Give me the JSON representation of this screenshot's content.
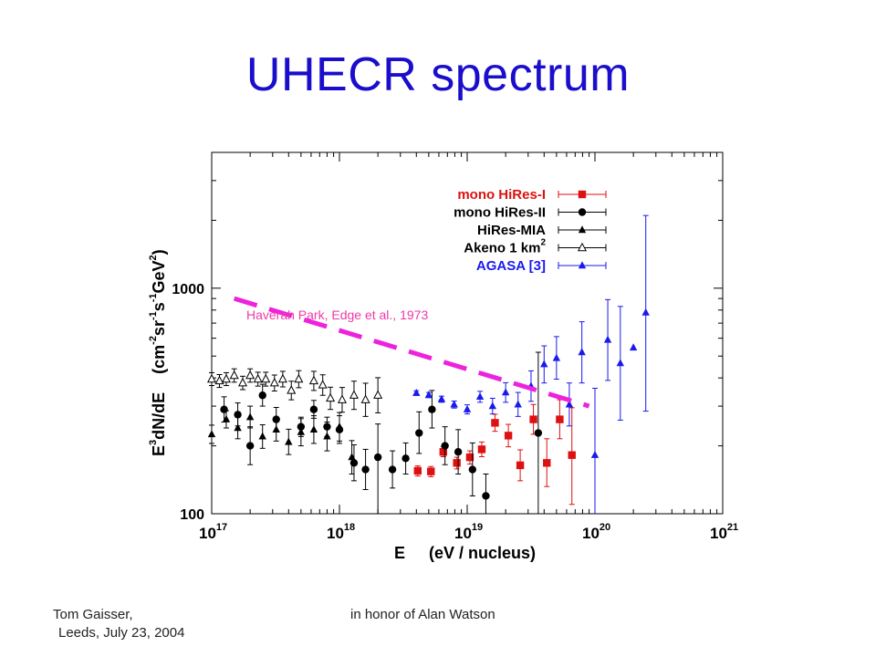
{
  "slide": {
    "title": "UHECR spectrum",
    "footer_left_line1": "Tom Gaisser,",
    "footer_left_line2": "Leeds, July 23, 2004",
    "footer_center": "in honor of Alan Watson"
  },
  "chart_data": {
    "type": "scatter",
    "xscale": "log",
    "yscale": "log",
    "xlim": [
      1e+17,
      1e+21
    ],
    "ylim": [
      100,
      4000
    ],
    "x_ticks": [
      {
        "base": "10",
        "exp": "17"
      },
      {
        "base": "10",
        "exp": "18"
      },
      {
        "base": "10",
        "exp": "19"
      },
      {
        "base": "10",
        "exp": "20"
      },
      {
        "base": "10",
        "exp": "21"
      }
    ],
    "y_ticks": [
      "100",
      "1000"
    ],
    "xlabel": {
      "main": "E",
      "unit": "(eV / nucleus)"
    },
    "ylabel": {
      "main_pre": "E",
      "main_sup": "3",
      "main_post": "dN/dE",
      "unit_a": "(cm",
      "unit_a_sup": "-2",
      "unit_b": "sr",
      "unit_b_sup": "-1",
      "unit_c": "s",
      "unit_c_sup": "-1",
      "unit_d": "GeV",
      "unit_d_sup": "2",
      "unit_e": ")"
    },
    "annotation": {
      "text": "Haverah Park, Edge et al., 1973",
      "color": "#ee3aa8"
    },
    "reference_line": {
      "x": [
        1.5e+17,
        9e+19
      ],
      "y": [
        900,
        300
      ],
      "color": "#ee22dd"
    },
    "legend_position": "top-right",
    "legend": [
      {
        "label": "mono HiRes-I",
        "color": "#dd1111",
        "marker": "square"
      },
      {
        "label": "mono HiRes-II",
        "color": "#000000",
        "marker": "circle"
      },
      {
        "label": "HiRes-MIA",
        "color": "#000000",
        "marker": "triangle"
      },
      {
        "label_pre": "Akeno 1 km",
        "label_sup": "2",
        "color": "#000000",
        "marker": "open-triangle"
      },
      {
        "label": "AGASA [3]",
        "color": "#1a1aee",
        "marker": "triangle"
      }
    ],
    "series": [
      {
        "name": "mono HiRes-I",
        "color": "#dd1111",
        "marker": "square",
        "points": [
          {
            "x": 4.1e+18,
            "y": 155,
            "lo": 147,
            "hi": 163
          },
          {
            "x": 5.2e+18,
            "y": 154,
            "lo": 146,
            "hi": 162
          },
          {
            "x": 6.5e+18,
            "y": 188,
            "lo": 179,
            "hi": 198
          },
          {
            "x": 8.3e+18,
            "y": 168,
            "lo": 158,
            "hi": 178
          },
          {
            "x": 1.05e+19,
            "y": 178,
            "lo": 166,
            "hi": 190
          },
          {
            "x": 1.3e+19,
            "y": 193,
            "lo": 179,
            "hi": 208
          },
          {
            "x": 1.65e+19,
            "y": 253,
            "lo": 232,
            "hi": 276
          },
          {
            "x": 2.1e+19,
            "y": 222,
            "lo": 198,
            "hi": 249
          },
          {
            "x": 2.6e+19,
            "y": 164,
            "lo": 140,
            "hi": 192
          },
          {
            "x": 3.3e+19,
            "y": 262,
            "lo": 225,
            "hi": 305
          },
          {
            "x": 4.2e+19,
            "y": 168,
            "lo": 132,
            "hi": 215
          },
          {
            "x": 5.3e+19,
            "y": 262,
            "lo": 215,
            "hi": 320
          },
          {
            "x": 6.6e+19,
            "y": 182,
            "lo": 110,
            "hi": 295
          }
        ]
      },
      {
        "name": "mono HiRes-II",
        "color": "#000000",
        "marker": "circle",
        "points": [
          {
            "x": 1.25e+17,
            "y": 290,
            "lo": 255,
            "hi": 330
          },
          {
            "x": 1.6e+17,
            "y": 275,
            "lo": 245,
            "hi": 310
          },
          {
            "x": 2e+17,
            "y": 200,
            "lo": 165,
            "hi": 243
          },
          {
            "x": 2.5e+17,
            "y": 335,
            "lo": 300,
            "hi": 375
          },
          {
            "x": 3.2e+17,
            "y": 262,
            "lo": 232,
            "hi": 296
          },
          {
            "x": 5e+17,
            "y": 243,
            "lo": 220,
            "hi": 268
          },
          {
            "x": 6.3e+17,
            "y": 290,
            "lo": 265,
            "hi": 318
          },
          {
            "x": 8e+17,
            "y": 243,
            "lo": 220,
            "hi": 268
          },
          {
            "x": 1e+18,
            "y": 236,
            "lo": 205,
            "hi": 272
          },
          {
            "x": 1.3e+18,
            "y": 168,
            "lo": 140,
            "hi": 202
          },
          {
            "x": 1.6e+18,
            "y": 157,
            "lo": 128,
            "hi": 193
          },
          {
            "x": 2e+18,
            "y": 178,
            "lo": 100,
            "hi": 250
          },
          {
            "x": 2.6e+18,
            "y": 157,
            "lo": 130,
            "hi": 190
          },
          {
            "x": 3.3e+18,
            "y": 176,
            "lo": 150,
            "hi": 206
          },
          {
            "x": 4.2e+18,
            "y": 228,
            "lo": 185,
            "hi": 283
          },
          {
            "x": 5.3e+18,
            "y": 290,
            "lo": 240,
            "hi": 352
          },
          {
            "x": 6.7e+18,
            "y": 200,
            "lo": 165,
            "hi": 243
          },
          {
            "x": 8.5e+18,
            "y": 188,
            "lo": 150,
            "hi": 236
          },
          {
            "x": 1.1e+19,
            "y": 157,
            "lo": 120,
            "hi": 206
          },
          {
            "x": 1.4e+19,
            "y": 120,
            "lo": 95,
            "hi": 150
          },
          {
            "x": 3.6e+19,
            "y": 228,
            "lo": 100,
            "hi": 520
          }
        ]
      },
      {
        "name": "HiRes-MIA",
        "color": "#000000",
        "marker": "triangle",
        "points": [
          {
            "x": 1e+17,
            "y": 225,
            "lo": 205,
            "hi": 247
          },
          {
            "x": 1.3e+17,
            "y": 262,
            "lo": 240,
            "hi": 286
          },
          {
            "x": 1.6e+17,
            "y": 240,
            "lo": 215,
            "hi": 268
          },
          {
            "x": 2e+17,
            "y": 268,
            "lo": 240,
            "hi": 300
          },
          {
            "x": 2.5e+17,
            "y": 220,
            "lo": 195,
            "hi": 248
          },
          {
            "x": 3.2e+17,
            "y": 236,
            "lo": 210,
            "hi": 265
          },
          {
            "x": 4e+17,
            "y": 208,
            "lo": 183,
            "hi": 237
          },
          {
            "x": 5e+17,
            "y": 230,
            "lo": 200,
            "hi": 264
          },
          {
            "x": 6.3e+17,
            "y": 236,
            "lo": 205,
            "hi": 272
          },
          {
            "x": 8e+17,
            "y": 220,
            "lo": 190,
            "hi": 255
          },
          {
            "x": 1e+18,
            "y": 243,
            "lo": 210,
            "hi": 281
          },
          {
            "x": 1.25e+18,
            "y": 178,
            "lo": 150,
            "hi": 211
          }
        ]
      },
      {
        "name": "Akeno 1 km2",
        "color": "#000000",
        "marker": "open-triangle",
        "points": [
          {
            "x": 1e+17,
            "y": 395,
            "lo": 370,
            "hi": 422
          },
          {
            "x": 1.15e+17,
            "y": 388,
            "lo": 363,
            "hi": 414
          },
          {
            "x": 1.3e+17,
            "y": 395,
            "lo": 370,
            "hi": 422
          },
          {
            "x": 1.5e+17,
            "y": 410,
            "lo": 383,
            "hi": 439
          },
          {
            "x": 1.75e+17,
            "y": 380,
            "lo": 355,
            "hi": 407
          },
          {
            "x": 2e+17,
            "y": 410,
            "lo": 383,
            "hi": 439
          },
          {
            "x": 2.3e+17,
            "y": 395,
            "lo": 368,
            "hi": 424
          },
          {
            "x": 2.65e+17,
            "y": 395,
            "lo": 368,
            "hi": 424
          },
          {
            "x": 3.1e+17,
            "y": 380,
            "lo": 350,
            "hi": 412
          },
          {
            "x": 3.6e+17,
            "y": 395,
            "lo": 365,
            "hi": 428
          },
          {
            "x": 4.2e+17,
            "y": 352,
            "lo": 320,
            "hi": 387
          },
          {
            "x": 4.8e+17,
            "y": 395,
            "lo": 362,
            "hi": 431
          },
          {
            "x": 6.3e+17,
            "y": 388,
            "lo": 352,
            "hi": 428
          },
          {
            "x": 7.4e+17,
            "y": 372,
            "lo": 335,
            "hi": 413
          },
          {
            "x": 8.5e+17,
            "y": 325,
            "lo": 290,
            "hi": 364
          },
          {
            "x": 1.05e+18,
            "y": 320,
            "lo": 282,
            "hi": 363
          },
          {
            "x": 1.3e+18,
            "y": 335,
            "lo": 290,
            "hi": 387
          },
          {
            "x": 1.6e+18,
            "y": 320,
            "lo": 270,
            "hi": 379
          },
          {
            "x": 2e+18,
            "y": 335,
            "lo": 280,
            "hi": 401
          }
        ]
      },
      {
        "name": "AGASA [3]",
        "color": "#1a1aee",
        "marker": "triangle",
        "points": [
          {
            "x": 4e+18,
            "y": 343,
            "lo": 335,
            "hi": 351
          },
          {
            "x": 5e+18,
            "y": 336,
            "lo": 327,
            "hi": 345
          },
          {
            "x": 6.3e+18,
            "y": 322,
            "lo": 312,
            "hi": 332
          },
          {
            "x": 7.9e+18,
            "y": 305,
            "lo": 294,
            "hi": 316
          },
          {
            "x": 1e+19,
            "y": 290,
            "lo": 277,
            "hi": 304
          },
          {
            "x": 1.26e+19,
            "y": 330,
            "lo": 312,
            "hi": 349
          },
          {
            "x": 1.58e+19,
            "y": 300,
            "lo": 277,
            "hi": 325
          },
          {
            "x": 2e+19,
            "y": 345,
            "lo": 312,
            "hi": 381
          },
          {
            "x": 2.5e+19,
            "y": 305,
            "lo": 270,
            "hi": 345
          },
          {
            "x": 3.16e+19,
            "y": 368,
            "lo": 315,
            "hi": 430
          },
          {
            "x": 4e+19,
            "y": 460,
            "lo": 380,
            "hi": 555
          },
          {
            "x": 5e+19,
            "y": 490,
            "lo": 395,
            "hi": 610
          },
          {
            "x": 6.3e+19,
            "y": 305,
            "lo": 245,
            "hi": 380
          },
          {
            "x": 7.9e+19,
            "y": 520,
            "lo": 380,
            "hi": 710
          },
          {
            "x": 1e+20,
            "y": 182,
            "lo": 100,
            "hi": 360
          },
          {
            "x": 1.26e+20,
            "y": 590,
            "lo": 390,
            "hi": 890
          },
          {
            "x": 1.58e+20,
            "y": 465,
            "lo": 260,
            "hi": 830
          },
          {
            "x": 2e+20,
            "y": 545,
            "lo": 545,
            "hi": 545
          },
          {
            "x": 2.5e+20,
            "y": 780,
            "lo": 285,
            "hi": 2100
          }
        ]
      }
    ]
  }
}
